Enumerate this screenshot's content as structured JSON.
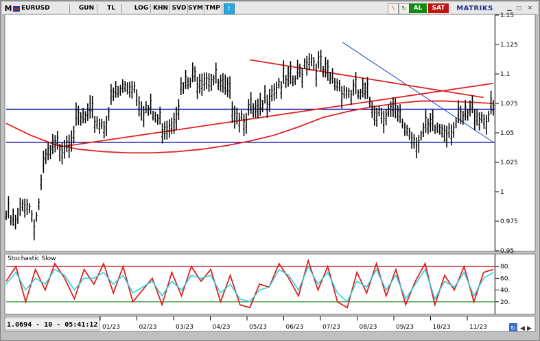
{
  "toolbar": {
    "menu_letter": "M",
    "symbol": "EURUSD",
    "buttons": [
      "GUN",
      "TL",
      "LOG",
      "KHN",
      "SVD",
      "SYM",
      "TMP"
    ],
    "buy_label": "AL",
    "sell_label": "SAT",
    "brand": "MATRIKS",
    "icons": [
      "lightning-icon",
      "refresh-icon",
      "copy-icon",
      "twitter-icon",
      "minimize-icon",
      "maximize-icon",
      "close-icon"
    ]
  },
  "chart_data": [
    {
      "type": "line",
      "title": "",
      "symbol": "EURUSD",
      "yaxis": {
        "ticks": [
          1.15,
          1.125,
          1.1,
          1.075,
          1.05,
          1.025,
          1,
          0.975,
          0.95
        ],
        "ylim": [
          0.95,
          1.15
        ],
        "side": "right"
      },
      "xaxis": {
        "tick_labels": [
          "01/23",
          "02/23",
          "03/23",
          "04/23",
          "05/23",
          "06/23",
          "07/23",
          "08/23",
          "09/23",
          "10/23",
          "11/23"
        ]
      },
      "price_x": [
        0,
        0.02,
        0.04,
        0.06,
        0.08,
        0.1,
        0.12,
        0.14,
        0.16,
        0.18,
        0.2,
        0.22,
        0.24,
        0.26,
        0.28,
        0.3,
        0.32,
        0.34,
        0.36,
        0.38,
        0.4,
        0.42,
        0.44,
        0.46,
        0.48,
        0.5,
        0.52,
        0.54,
        0.56,
        0.58,
        0.6,
        0.62,
        0.64,
        0.66,
        0.68,
        0.7,
        0.72,
        0.74,
        0.76,
        0.78,
        0.8,
        0.82,
        0.84,
        0.86,
        0.88,
        0.9,
        0.92,
        0.94,
        0.96,
        0.98,
        1.0
      ],
      "price_y": [
        0.985,
        0.975,
        1.0,
        0.978,
        1.03,
        1.04,
        1.048,
        1.06,
        1.066,
        1.068,
        1.062,
        1.085,
        1.092,
        1.098,
        1.078,
        1.07,
        1.062,
        1.066,
        1.09,
        1.098,
        1.105,
        1.104,
        1.092,
        1.084,
        1.07,
        1.072,
        1.068,
        1.092,
        1.098,
        1.095,
        1.102,
        1.122,
        1.112,
        1.1,
        1.098,
        1.09,
        1.088,
        1.085,
        1.075,
        1.073,
        1.068,
        1.06,
        1.05,
        1.055,
        1.058,
        1.06,
        1.062,
        1.065,
        1.075,
        1.068,
        1.072
      ],
      "horizontal_lines": [
        1.07,
        1.042
      ],
      "trend_lines": [
        {
          "color": "#1a3de0",
          "x": [
            0.69,
            1.0
          ],
          "y": [
            1.127,
            1.042
          ]
        },
        {
          "color": "#e02020",
          "x": [
            0.5,
            0.98
          ],
          "y": [
            1.112,
            1.08
          ]
        },
        {
          "color": "#e02020",
          "x": [
            0.11,
            1.0
          ],
          "y": [
            1.038,
            1.092
          ]
        }
      ],
      "moving_average": {
        "color": "#e02020",
        "x": [
          0,
          0.05,
          0.1,
          0.15,
          0.2,
          0.25,
          0.3,
          0.35,
          0.4,
          0.45,
          0.5,
          0.55,
          0.6,
          0.65,
          0.7,
          0.75,
          0.8,
          0.85,
          0.9,
          0.95,
          1.0
        ],
        "y": [
          1.058,
          1.048,
          1.04,
          1.036,
          1.034,
          1.033,
          1.033,
          1.034,
          1.036,
          1.039,
          1.043,
          1.048,
          1.055,
          1.063,
          1.068,
          1.072,
          1.075,
          1.077,
          1.077,
          1.076,
          1.075
        ]
      }
    },
    {
      "type": "line",
      "title": "Stochastic Slow",
      "yaxis": {
        "ticks": [
          80,
          60,
          40,
          20
        ],
        "ylim": [
          0,
          100
        ],
        "side": "right"
      },
      "levels": [
        80,
        20
      ],
      "series": [
        {
          "color": "#e02020",
          "x": [
            0,
            0.02,
            0.04,
            0.06,
            0.08,
            0.1,
            0.12,
            0.14,
            0.16,
            0.18,
            0.2,
            0.22,
            0.24,
            0.26,
            0.28,
            0.3,
            0.32,
            0.34,
            0.36,
            0.38,
            0.4,
            0.42,
            0.44,
            0.46,
            0.48,
            0.5,
            0.52,
            0.54,
            0.56,
            0.58,
            0.6,
            0.62,
            0.64,
            0.66,
            0.68,
            0.7,
            0.72,
            0.74,
            0.76,
            0.78,
            0.8,
            0.82,
            0.84,
            0.86,
            0.88,
            0.9,
            0.92,
            0.94,
            0.96,
            0.98,
            1.0
          ],
          "y": [
            55,
            80,
            20,
            75,
            40,
            85,
            60,
            25,
            75,
            50,
            85,
            35,
            80,
            20,
            40,
            60,
            15,
            70,
            30,
            80,
            55,
            75,
            20,
            65,
            15,
            10,
            50,
            45,
            85,
            60,
            30,
            90,
            40,
            80,
            20,
            10,
            70,
            35,
            85,
            30,
            75,
            15,
            55,
            85,
            15,
            65,
            40,
            80,
            20,
            70,
            75
          ]
        },
        {
          "color": "#20d0e0",
          "x": [
            0,
            0.02,
            0.04,
            0.06,
            0.08,
            0.1,
            0.12,
            0.14,
            0.16,
            0.18,
            0.2,
            0.22,
            0.24,
            0.26,
            0.28,
            0.3,
            0.32,
            0.34,
            0.36,
            0.38,
            0.4,
            0.42,
            0.44,
            0.46,
            0.48,
            0.5,
            0.52,
            0.54,
            0.56,
            0.58,
            0.6,
            0.62,
            0.64,
            0.66,
            0.68,
            0.7,
            0.72,
            0.74,
            0.76,
            0.78,
            0.8,
            0.82,
            0.84,
            0.86,
            0.88,
            0.9,
            0.92,
            0.94,
            0.96,
            0.98,
            1.0
          ],
          "y": [
            50,
            70,
            40,
            60,
            50,
            75,
            65,
            40,
            60,
            60,
            70,
            50,
            65,
            35,
            45,
            55,
            30,
            55,
            40,
            65,
            60,
            65,
            35,
            50,
            25,
            20,
            40,
            45,
            75,
            65,
            40,
            80,
            50,
            70,
            35,
            20,
            55,
            45,
            75,
            40,
            65,
            25,
            50,
            75,
            25,
            55,
            45,
            70,
            30,
            60,
            70
          ]
        }
      ]
    }
  ],
  "footer": {
    "readout": "1.0694 - 10 - 05:41:12",
    "nav_icons": [
      "refresh-icon",
      "zoom-in-icon",
      "zoom-out-icon",
      "scroll-left-icon",
      "scroll-right-icon"
    ]
  },
  "colors": {
    "bars": "#000000",
    "horizontal_level": "#1a1ab0",
    "trend_blue": "#1a3de0",
    "trend_red": "#e02020",
    "stoch_overbought": "#b01010",
    "stoch_oversold": "#108010"
  }
}
